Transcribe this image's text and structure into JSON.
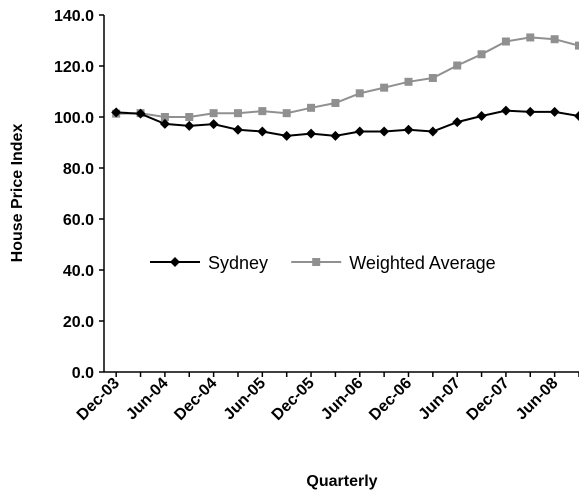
{
  "chart_data": {
    "type": "line",
    "xlabel": "Quarterly",
    "ylabel": "House Price Index",
    "ylim": [
      0,
      140
    ],
    "y_ticks": [
      "0.0",
      "20.0",
      "40.0",
      "60.0",
      "80.0",
      "100.0",
      "120.0",
      "140.0"
    ],
    "grid": false,
    "legend_position": "center",
    "x_tick_labels": [
      "Dec-03",
      "Jun-04",
      "Dec-04",
      "Jun-05",
      "Dec-05",
      "Jun-06",
      "Dec-06",
      "Jun-07",
      "Dec-07",
      "Jun-08"
    ],
    "categories": [
      "Dec-03",
      "Mar-04",
      "Jun-04",
      "Sep-04",
      "Dec-04",
      "Mar-05",
      "Jun-05",
      "Sep-05",
      "Dec-05",
      "Mar-06",
      "Jun-06",
      "Sep-06",
      "Dec-06",
      "Mar-07",
      "Jun-07",
      "Sep-07",
      "Dec-07",
      "Mar-08",
      "Jun-08",
      "Sep-08"
    ],
    "series": [
      {
        "name": "Sydney",
        "color": "#000000",
        "marker": "diamond",
        "values": [
          101.8,
          101.3,
          97.3,
          96.5,
          97.2,
          95.0,
          94.3,
          92.6,
          93.5,
          92.6,
          94.3,
          94.3,
          95.0,
          94.3,
          98.0,
          100.4,
          102.5,
          102.0,
          102.0,
          100.4
        ]
      },
      {
        "name": "Weighted Average",
        "color": "#909090",
        "marker": "square",
        "values": [
          101.3,
          101.5,
          100.0,
          100.0,
          101.5,
          101.5,
          102.3,
          101.5,
          103.6,
          105.5,
          109.3,
          111.5,
          113.8,
          115.3,
          120.2,
          124.6,
          129.6,
          131.2,
          130.5,
          128.0
        ]
      }
    ]
  }
}
